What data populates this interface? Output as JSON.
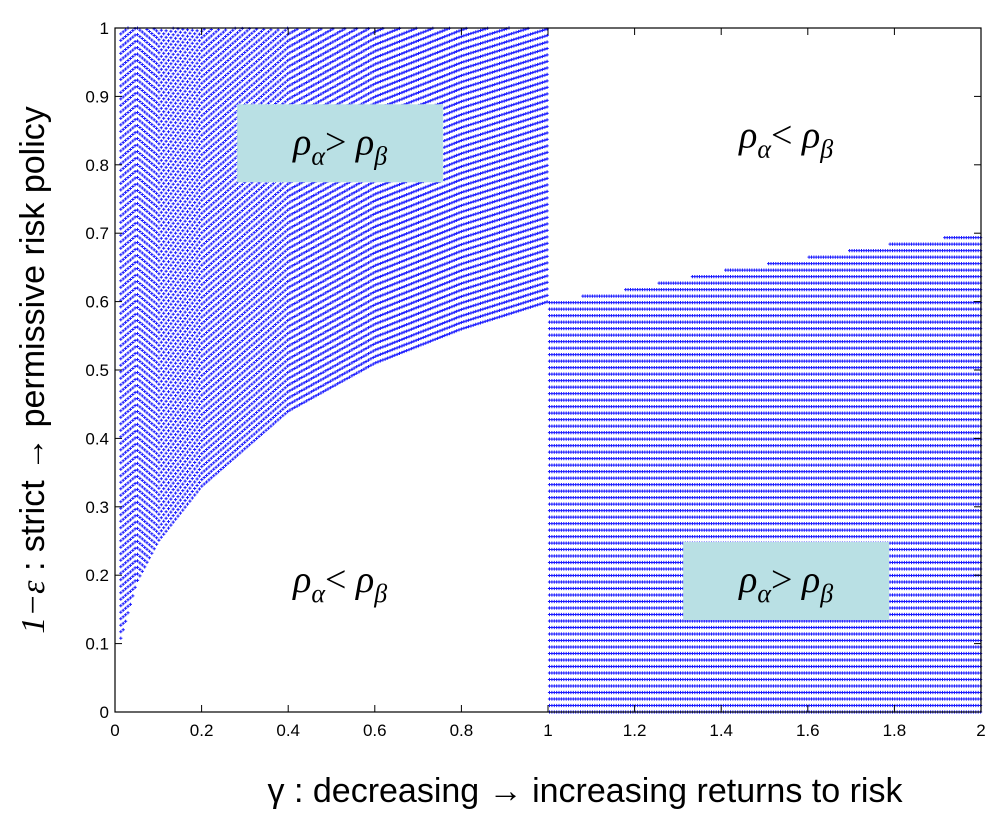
{
  "chart_data": {
    "type": "scatter",
    "xlabel": "γ : decreasing → increasing returns to risk",
    "ylabel_prefix": "1−ε",
    "ylabel_rest": " : strict → permissive risk policy",
    "xlim": [
      0,
      2
    ],
    "ylim": [
      0,
      1
    ],
    "x_ticks": [
      "0",
      "0.2",
      "0.4",
      "0.6",
      "0.8",
      "1",
      "1.2",
      "1.4",
      "1.6",
      "1.8",
      "2"
    ],
    "y_ticks": [
      "0",
      "0.1",
      "0.2",
      "0.3",
      "0.4",
      "0.5",
      "0.6",
      "0.7",
      "0.8",
      "0.9",
      "1"
    ],
    "marker_color": "#1a1aff",
    "label_box_color": "#b9e0e4",
    "boundary": {
      "formula": "y = 0.6 * x^(1/1.5) type power curve; left region above curve for γ<1, right region below curve for γ>1",
      "left_points": [
        [
          0.01,
          0.1
        ],
        [
          0.05,
          0.19
        ],
        [
          0.1,
          0.25
        ],
        [
          0.2,
          0.33
        ],
        [
          0.4,
          0.44
        ],
        [
          0.6,
          0.51
        ],
        [
          0.8,
          0.56
        ],
        [
          1.0,
          0.6
        ]
      ],
      "right_points": [
        [
          1.0,
          0.6
        ],
        [
          1.2,
          0.62
        ],
        [
          1.4,
          0.645
        ],
        [
          1.6,
          0.665
        ],
        [
          1.8,
          0.685
        ],
        [
          2.0,
          0.7
        ]
      ]
    },
    "regions": [
      {
        "label_main": "ρ",
        "label_sub1": "α",
        "label_op": "> ",
        "label_main2": "ρ",
        "label_sub2": "β",
        "boxed": true,
        "anchor": [
          0.52,
          0.83
        ]
      },
      {
        "label_main": "ρ",
        "label_sub1": "α",
        "label_op": "< ",
        "label_main2": "ρ",
        "label_sub2": "β",
        "boxed": false,
        "anchor": [
          1.55,
          0.84
        ]
      },
      {
        "label_main": "ρ",
        "label_sub1": "α",
        "label_op": "< ",
        "label_main2": "ρ",
        "label_sub2": "β",
        "boxed": false,
        "anchor": [
          0.52,
          0.19
        ]
      },
      {
        "label_main": "ρ",
        "label_sub1": "α",
        "label_op": "> ",
        "label_main2": "ρ",
        "label_sub2": "β",
        "boxed": true,
        "anchor": [
          1.55,
          0.19
        ]
      }
    ]
  }
}
